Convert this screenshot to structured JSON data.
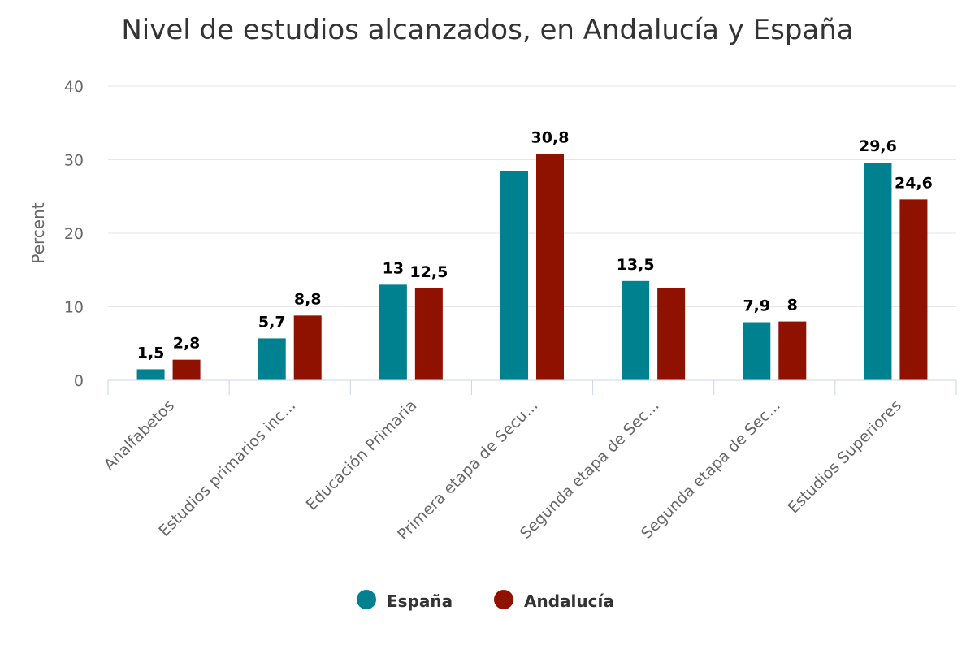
{
  "chart_data": {
    "type": "bar",
    "title": "Nivel de estudios alcanzados, en Andalucía y España",
    "ylabel": "Percent",
    "xlabel": "",
    "ylim": [
      0,
      40
    ],
    "yticks": [
      0,
      10,
      20,
      30,
      40
    ],
    "grid": true,
    "legend_position": "bottom",
    "categories": [
      "Analfabetos",
      "Estudios primarios inc...",
      "Educación Primaria",
      "Primera etapa de Secu...",
      "Segunda etapa de Sec...",
      "Segunda etapa de Sec...",
      "Estudios Superiores"
    ],
    "series": [
      {
        "name": "España",
        "color": "#00818f",
        "values": [
          1.5,
          5.7,
          13,
          28.5,
          13.5,
          7.9,
          29.6
        ],
        "labels": [
          "1,5",
          "5,7",
          "13",
          "",
          "13,5",
          "7,9",
          "29,6"
        ]
      },
      {
        "name": "Andalucía",
        "color": "#8f1100",
        "values": [
          2.8,
          8.8,
          12.5,
          30.8,
          12.5,
          8,
          24.6
        ],
        "labels": [
          "2,8",
          "8,8",
          "12,5",
          "30,8",
          "",
          "8",
          "24,6"
        ]
      }
    ]
  }
}
